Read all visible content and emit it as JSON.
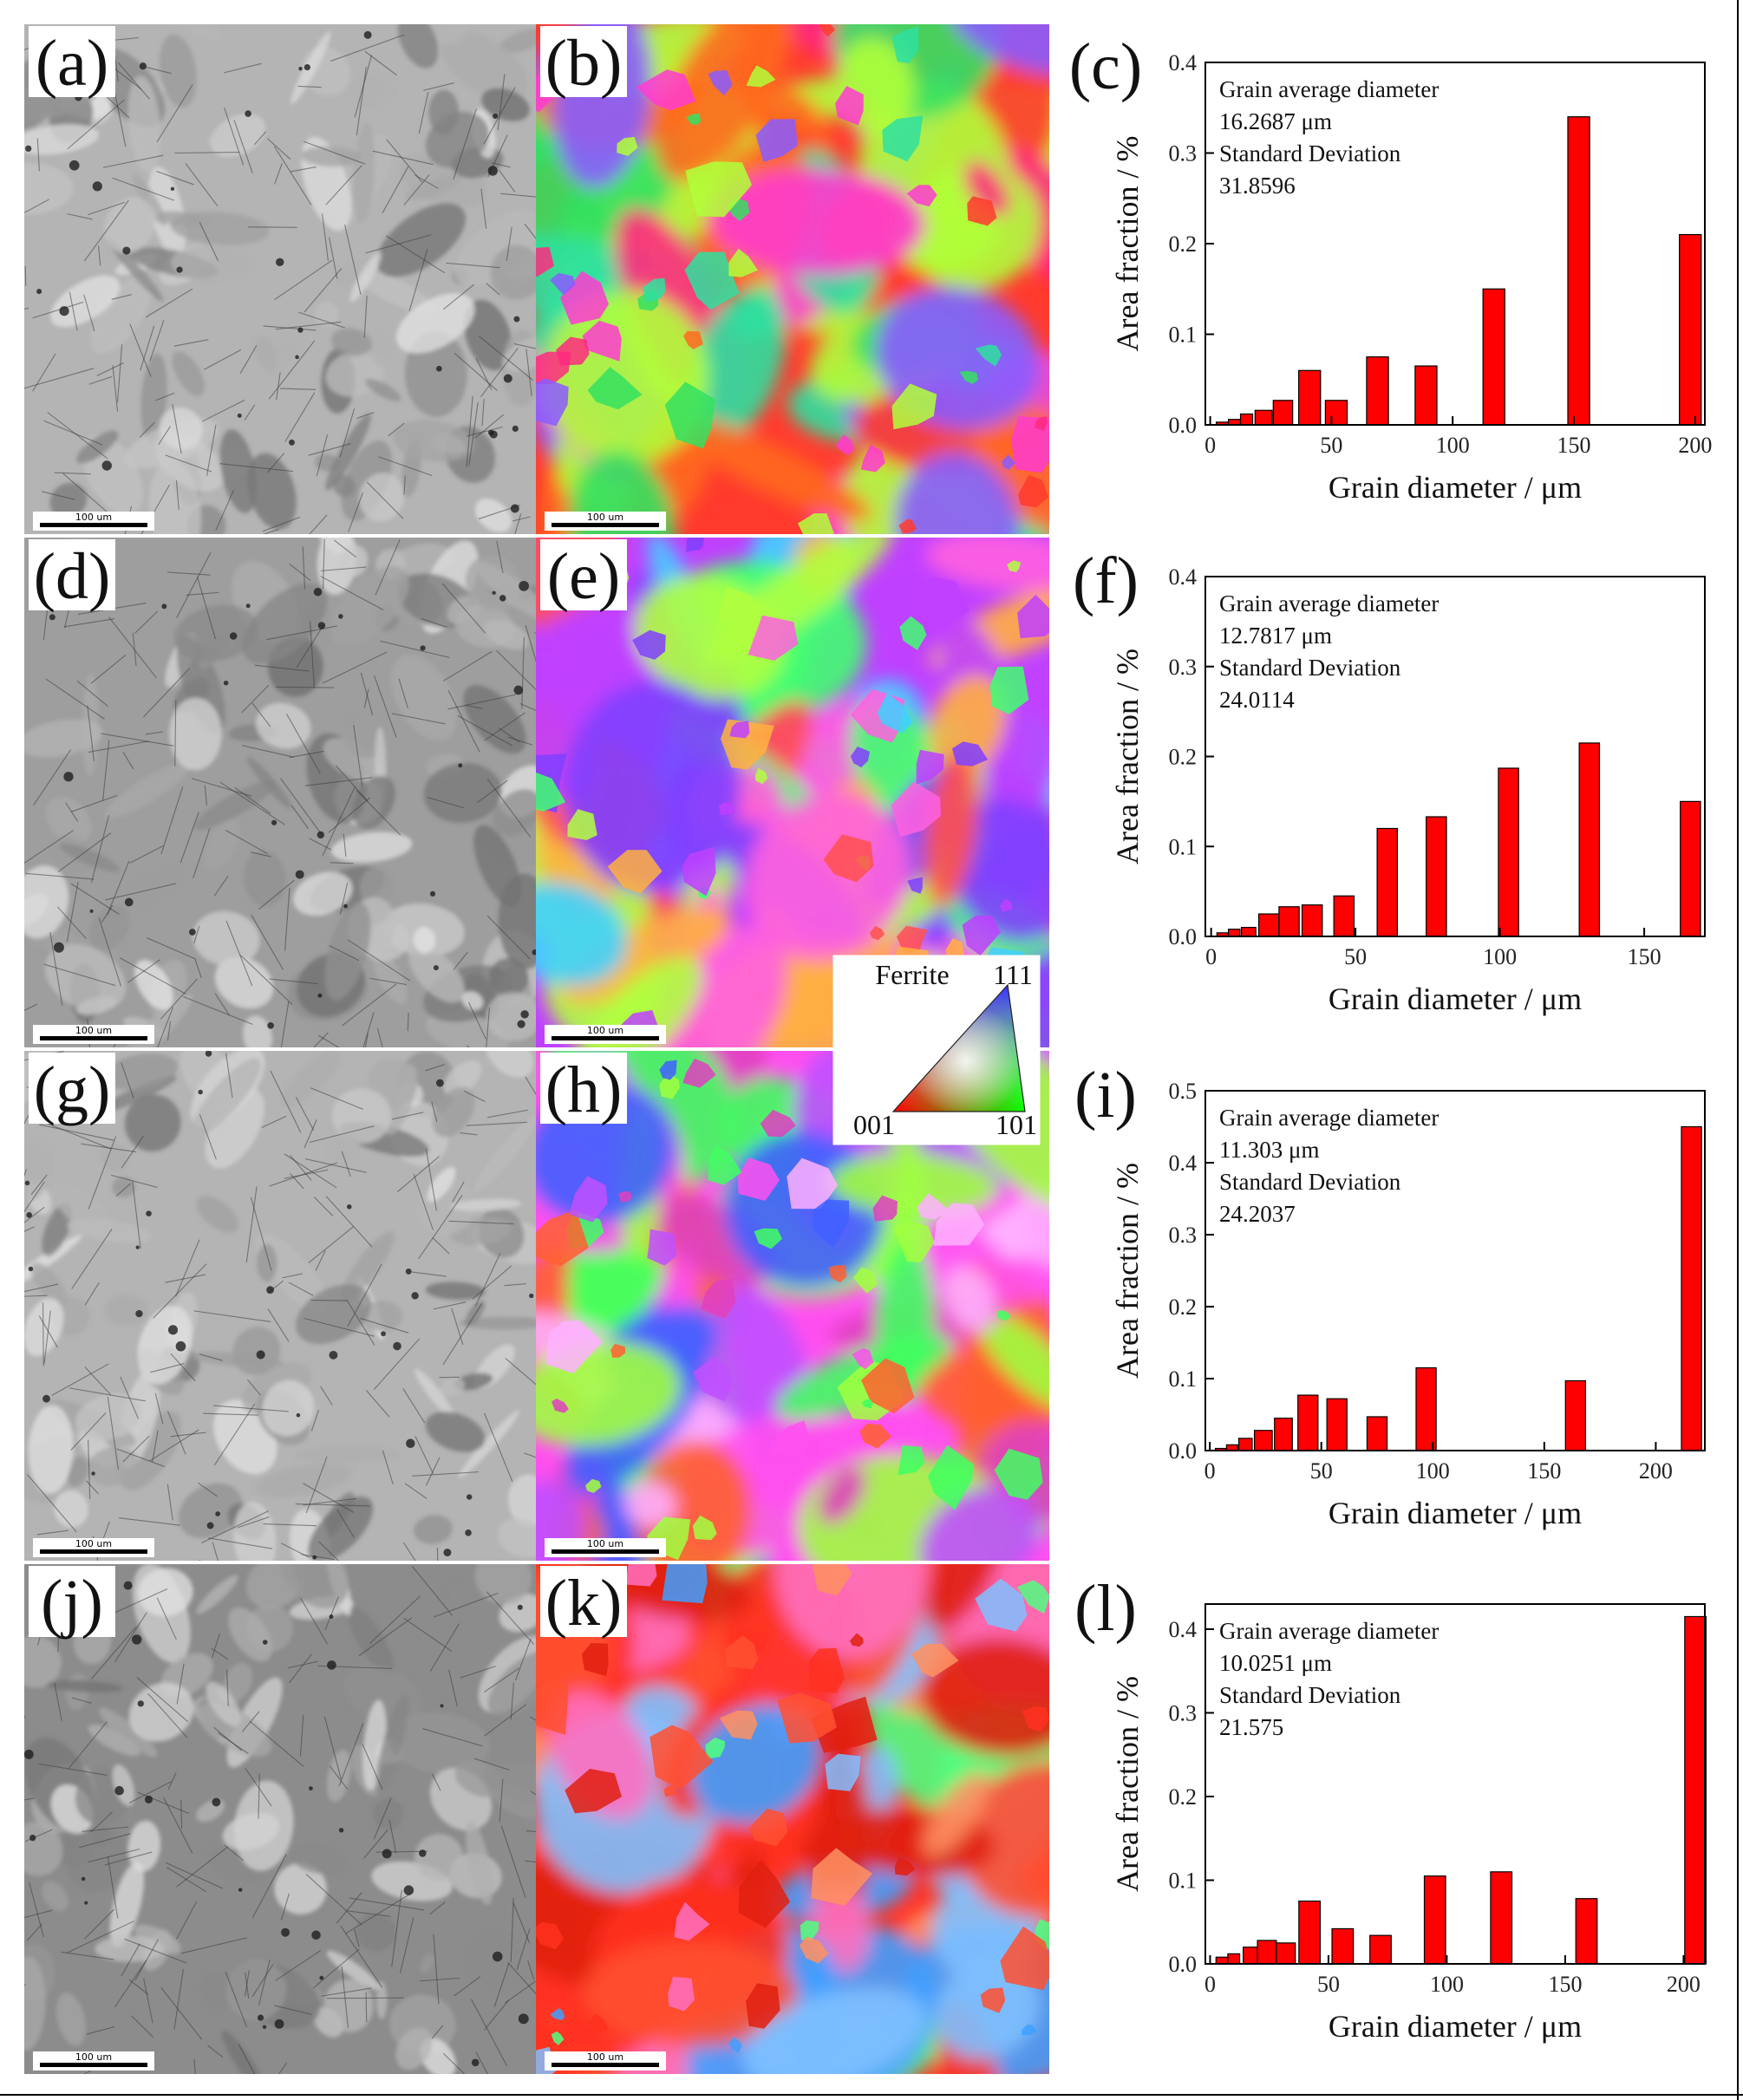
{
  "panels": {
    "micrographs": [
      {
        "label": "(a)",
        "scale": "100 um",
        "tone": "light",
        "ipf": false
      },
      {
        "label": "(b)",
        "scale": "100 um",
        "ipf": true,
        "palette": [
          "#ff3b2e",
          "#ff6a1f",
          "#34e060",
          "#2ee0a0",
          "#ff3bd0",
          "#8a5cff",
          "#b0ff3a",
          "#ff2a80"
        ]
      },
      {
        "label": "(d)",
        "scale": "100 um",
        "tone": "mid",
        "ipf": false
      },
      {
        "label": "(e)",
        "scale": "100 um",
        "ipf": true,
        "palette": [
          "#c040ff",
          "#ff60e0",
          "#ffb040",
          "#b0ff40",
          "#40ff70",
          "#8040ff",
          "#ff5050",
          "#40d0ff"
        ]
      },
      {
        "label": "(g)",
        "scale": "100 um",
        "tone": "light",
        "ipf": false
      },
      {
        "label": "(h)",
        "scale": "100 um",
        "ipf": true,
        "palette": [
          "#ff50f0",
          "#c050ff",
          "#ffb0ff",
          "#40ff60",
          "#ff6030",
          "#4060ff",
          "#e040c0",
          "#a0ff40"
        ]
      },
      {
        "label": "(j)",
        "scale": "100 um",
        "tone": "dark",
        "ipf": false
      },
      {
        "label": "(k)",
        "scale": "100 um",
        "ipf": true,
        "palette": [
          "#ff3020",
          "#ff5030",
          "#40a0ff",
          "#ff70c0",
          "#50ff80",
          "#ff9060",
          "#80c0ff",
          "#e02010"
        ]
      }
    ],
    "legend": {
      "title": "Ferrite",
      "corner_top": "111",
      "corner_left": "001",
      "corner_right": "101"
    }
  },
  "chart_data": [
    {
      "panel_label": "(c)",
      "type": "bar",
      "xlabel": "Grain diameter / μm",
      "ylabel": "Area fraction / %",
      "xlim": [
        -2,
        204
      ],
      "ylim": [
        0,
        0.4
      ],
      "xticks": [
        "0",
        "50",
        "100",
        "150",
        "200"
      ],
      "xtick_values": [
        0,
        50,
        100,
        150,
        200
      ],
      "yticks": [
        "0.0",
        "0.1",
        "0.2",
        "0.3",
        "0.4"
      ],
      "ytick_values": [
        0,
        0.1,
        0.2,
        0.3,
        0.4
      ],
      "annotation": [
        "Grain average diameter",
        "16.2687 μm",
        "Standard Deviation",
        "31.8596"
      ],
      "bars": [
        {
          "x": 5,
          "w": 5,
          "y": 0.003
        },
        {
          "x": 10,
          "w": 5,
          "y": 0.006
        },
        {
          "x": 15,
          "w": 5,
          "y": 0.012
        },
        {
          "x": 22,
          "w": 7,
          "y": 0.016
        },
        {
          "x": 30,
          "w": 8,
          "y": 0.027
        },
        {
          "x": 41,
          "w": 9,
          "y": 0.06
        },
        {
          "x": 52,
          "w": 9,
          "y": 0.027
        },
        {
          "x": 69,
          "w": 9,
          "y": 0.075
        },
        {
          "x": 89,
          "w": 9,
          "y": 0.065
        },
        {
          "x": 117,
          "w": 9,
          "y": 0.15
        },
        {
          "x": 152,
          "w": 9,
          "y": 0.34
        },
        {
          "x": 198,
          "w": 9,
          "y": 0.21
        }
      ]
    },
    {
      "panel_label": "(f)",
      "type": "bar",
      "xlabel": "Grain diameter / μm",
      "ylabel": "Area fraction / %",
      "xlim": [
        -2,
        171
      ],
      "ylim": [
        0,
        0.4
      ],
      "xticks": [
        "0",
        "50",
        "100",
        "150"
      ],
      "xtick_values": [
        0,
        50,
        100,
        150
      ],
      "yticks": [
        "0.0",
        "0.1",
        "0.2",
        "0.3",
        "0.4"
      ],
      "ytick_values": [
        0,
        0.1,
        0.2,
        0.3,
        0.4
      ],
      "annotation": [
        "Grain average diameter",
        "12.7817 μm",
        "Standard Deviation",
        "24.0114"
      ],
      "bars": [
        {
          "x": 4,
          "w": 4,
          "y": 0.004
        },
        {
          "x": 8,
          "w": 4,
          "y": 0.008
        },
        {
          "x": 13,
          "w": 5,
          "y": 0.01
        },
        {
          "x": 20,
          "w": 7,
          "y": 0.025
        },
        {
          "x": 27,
          "w": 7,
          "y": 0.033
        },
        {
          "x": 35,
          "w": 7,
          "y": 0.035
        },
        {
          "x": 46,
          "w": 7,
          "y": 0.045
        },
        {
          "x": 61,
          "w": 7,
          "y": 0.12
        },
        {
          "x": 78,
          "w": 7,
          "y": 0.133
        },
        {
          "x": 103,
          "w": 7,
          "y": 0.187
        },
        {
          "x": 131,
          "w": 7,
          "y": 0.215
        },
        {
          "x": 166,
          "w": 7,
          "y": 0.15
        }
      ]
    },
    {
      "panel_label": "(i)",
      "type": "bar",
      "xlabel": "Grain diameter / μm",
      "ylabel": "Area fraction / %",
      "xlim": [
        -2,
        222
      ],
      "ylim": [
        0,
        0.5
      ],
      "xticks": [
        "0",
        "50",
        "100",
        "150",
        "200"
      ],
      "xtick_values": [
        0,
        50,
        100,
        150,
        200
      ],
      "yticks": [
        "0.0",
        "0.1",
        "0.2",
        "0.3",
        "0.4",
        "0.5"
      ],
      "ytick_values": [
        0,
        0.1,
        0.2,
        0.3,
        0.4,
        0.5
      ],
      "annotation": [
        "Grain average diameter",
        "11.303 μm",
        "Standard Deviation",
        "24.2037"
      ],
      "bars": [
        {
          "x": 5,
          "w": 5,
          "y": 0.003
        },
        {
          "x": 10,
          "w": 5,
          "y": 0.008
        },
        {
          "x": 16,
          "w": 6,
          "y": 0.017
        },
        {
          "x": 24,
          "w": 8,
          "y": 0.028
        },
        {
          "x": 33,
          "w": 8,
          "y": 0.045
        },
        {
          "x": 44,
          "w": 9,
          "y": 0.077
        },
        {
          "x": 57,
          "w": 9,
          "y": 0.072
        },
        {
          "x": 75,
          "w": 9,
          "y": 0.047
        },
        {
          "x": 97,
          "w": 9,
          "y": 0.115
        },
        {
          "x": 164,
          "w": 9,
          "y": 0.097
        },
        {
          "x": 216,
          "w": 9,
          "y": 0.45
        }
      ]
    },
    {
      "panel_label": "(l)",
      "type": "bar",
      "xlabel": "Grain diameter / μm",
      "ylabel": "Area fraction / %",
      "xlim": [
        -2,
        209
      ],
      "ylim": [
        0,
        0.43
      ],
      "xticks": [
        "0",
        "50",
        "100",
        "150",
        "200"
      ],
      "xtick_values": [
        0,
        50,
        100,
        150,
        200
      ],
      "yticks": [
        "0.0",
        "0.1",
        "0.2",
        "0.3",
        "0.4"
      ],
      "ytick_values": [
        0,
        0.1,
        0.2,
        0.3,
        0.4
      ],
      "annotation": [
        "Grain average diameter",
        "10.0251 μm",
        "Standard Deviation",
        "21.575"
      ],
      "bars": [
        {
          "x": 5,
          "w": 5,
          "y": 0.008
        },
        {
          "x": 10,
          "w": 5,
          "y": 0.012
        },
        {
          "x": 17,
          "w": 6,
          "y": 0.02
        },
        {
          "x": 24,
          "w": 8,
          "y": 0.028
        },
        {
          "x": 32,
          "w": 8,
          "y": 0.025
        },
        {
          "x": 42,
          "w": 9,
          "y": 0.075
        },
        {
          "x": 56,
          "w": 9,
          "y": 0.042
        },
        {
          "x": 72,
          "w": 9,
          "y": 0.034
        },
        {
          "x": 95,
          "w": 9,
          "y": 0.105
        },
        {
          "x": 123,
          "w": 9,
          "y": 0.11
        },
        {
          "x": 159,
          "w": 9,
          "y": 0.078
        },
        {
          "x": 205,
          "w": 9,
          "y": 0.415
        }
      ]
    }
  ]
}
